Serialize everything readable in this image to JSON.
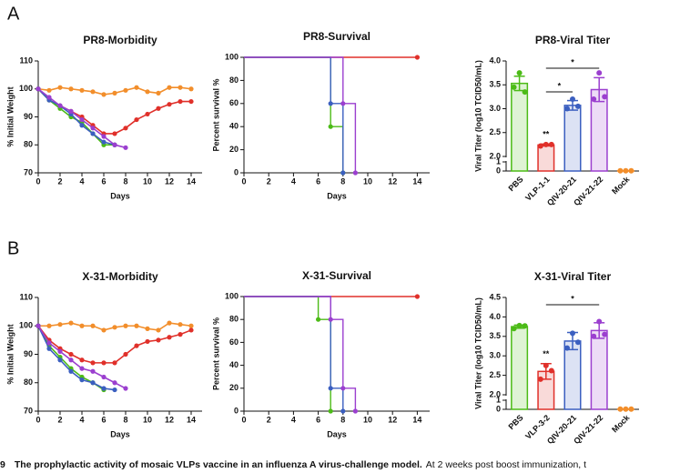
{
  "panel_labels": [
    "A",
    "B"
  ],
  "caption": {
    "number": "9",
    "title": "The prophylactic activity of mosaic VLPs vaccine in an influenza A virus-challenge model.",
    "text": "At 2 weeks post boost immunization, t"
  },
  "chart_data": [
    {
      "type": "line",
      "title": "PR8-Morbidity",
      "x_label": "Days",
      "y_label": "% Initial Weight",
      "x": [
        0,
        1,
        2,
        3,
        4,
        5,
        6,
        7,
        8,
        9,
        10,
        11,
        12,
        13,
        14
      ],
      "xlim": [
        0,
        15
      ],
      "xticks": [
        0,
        2,
        4,
        6,
        8,
        10,
        12,
        14
      ],
      "ylim": [
        70,
        110
      ],
      "yticks": [
        70,
        80,
        90,
        100,
        110
      ],
      "series": [
        {
          "color": "#f28e2b",
          "values": [
            100,
            99.5,
            100.5,
            100,
            99.5,
            99,
            98,
            98.5,
            99.5,
            100.5,
            99,
            98.5,
            100.5,
            100.5,
            100
          ]
        },
        {
          "color": "#e0302a",
          "values": [
            100,
            96,
            94,
            92,
            90,
            87,
            84,
            84,
            86,
            89,
            91,
            93,
            94.5,
            95.5,
            95.5
          ]
        },
        {
          "color": "#4cbb17",
          "values": [
            100,
            96,
            93,
            90,
            88,
            84,
            80,
            80,
            null,
            null,
            null,
            null,
            null,
            null,
            null
          ]
        },
        {
          "color": "#3b5fc0",
          "values": [
            100,
            96,
            94,
            91,
            87,
            84,
            81,
            80,
            null,
            null,
            null,
            null,
            null,
            null,
            null
          ]
        },
        {
          "color": "#9b3fcf",
          "values": [
            100,
            97,
            94,
            92,
            89,
            86,
            83,
            80,
            79,
            null,
            null,
            null,
            null,
            null,
            null
          ]
        }
      ]
    },
    {
      "type": "step",
      "title": "PR8-Survival",
      "x_label": "Days",
      "y_label": "Percent survival %",
      "xlim": [
        0,
        15
      ],
      "xticks": [
        0,
        2,
        4,
        6,
        8,
        10,
        12,
        14
      ],
      "ylim": [
        0,
        100
      ],
      "yticks": [
        0,
        20,
        40,
        60,
        80,
        100
      ],
      "series": [
        {
          "color": "#e0302a",
          "x": [
            0,
            14
          ],
          "values": [
            100,
            100
          ]
        },
        {
          "color": "#4cbb17",
          "x": [
            0,
            7,
            8
          ],
          "values": [
            100,
            40,
            0
          ]
        },
        {
          "color": "#3b5fc0",
          "x": [
            0,
            7,
            8
          ],
          "values": [
            100,
            60,
            0
          ]
        },
        {
          "color": "#9b3fcf",
          "x": [
            0,
            8,
            9
          ],
          "values": [
            100,
            60,
            0
          ]
        }
      ]
    },
    {
      "type": "bar",
      "title": "PR8-Viral Titer",
      "y_label": "Viral Titer (log10 TCID50/mL)",
      "categories": [
        "PBS",
        "VLP-1-1",
        "QIV-20-21",
        "QIV-21-22",
        "Mock"
      ],
      "colors": [
        "#4cbb17",
        "#e0302a",
        "#3b5fc0",
        "#9b3fcf",
        "#f28e2b"
      ],
      "values": [
        3.53,
        2.24,
        3.07,
        3.4,
        0.02
      ],
      "errors": [
        0.15,
        0.02,
        0.1,
        0.25,
        0
      ],
      "points": [
        [
          3.45,
          3.75,
          3.35
        ],
        [
          2.22,
          2.25,
          2.25
        ],
        [
          3.0,
          3.2,
          3.05
        ],
        [
          3.2,
          3.75,
          3.25
        ],
        [
          0.02,
          0.02,
          0.02
        ]
      ],
      "ylim": [
        0,
        4.0
      ],
      "axis_break": [
        1,
        2
      ],
      "yticks": [
        0,
        1,
        {
          "value": 2,
          "label": "2.0"
        },
        2.5,
        {
          "value": 3,
          "label": "3.0"
        },
        3.5,
        {
          "value": 4,
          "label": "4.0"
        }
      ],
      "significance": [
        {
          "label": "*",
          "from": 1,
          "to": 3
        },
        {
          "label": "*",
          "from": 1,
          "to": 2
        },
        {
          "label": "**",
          "from": 1,
          "to": 1
        }
      ]
    },
    {
      "type": "line",
      "title": "X-31-Morbidity",
      "x_label": "Days",
      "y_label": "% Initial Weight",
      "x": [
        0,
        1,
        2,
        3,
        4,
        5,
        6,
        7,
        8,
        9,
        10,
        11,
        12,
        13,
        14
      ],
      "xlim": [
        0,
        15
      ],
      "xticks": [
        0,
        2,
        4,
        6,
        8,
        10,
        12,
        14
      ],
      "ylim": [
        70,
        110
      ],
      "yticks": [
        70,
        80,
        90,
        100,
        110
      ],
      "series": [
        {
          "color": "#f28e2b",
          "values": [
            100,
            100,
            100.5,
            101,
            100,
            100,
            98.5,
            99.5,
            100,
            100,
            99,
            98.5,
            101,
            100.5,
            100
          ]
        },
        {
          "color": "#e0302a",
          "values": [
            100,
            95,
            92,
            90,
            88,
            87,
            87,
            87,
            90,
            93,
            94.5,
            95,
            96,
            97,
            98.5
          ]
        },
        {
          "color": "#4cbb17",
          "values": [
            100,
            93,
            89,
            85,
            82,
            80,
            77.5,
            null,
            null,
            null,
            null,
            null,
            null,
            null,
            null
          ]
        },
        {
          "color": "#3b5fc0",
          "values": [
            100,
            92,
            88,
            84,
            81,
            80,
            78,
            77.5,
            null,
            null,
            null,
            null,
            null,
            null,
            null
          ]
        },
        {
          "color": "#9b3fcf",
          "values": [
            100,
            94,
            91,
            88,
            85,
            84,
            82,
            80,
            78,
            null,
            null,
            null,
            null,
            null,
            null
          ]
        }
      ]
    },
    {
      "type": "step",
      "title": "X-31-Survival",
      "x_label": "Days",
      "y_label": "Percent survival %",
      "xlim": [
        0,
        15
      ],
      "xticks": [
        0,
        2,
        4,
        6,
        8,
        10,
        12,
        14
      ],
      "ylim": [
        0,
        100
      ],
      "yticks": [
        0,
        20,
        40,
        60,
        80,
        100
      ],
      "series": [
        {
          "color": "#e0302a",
          "x": [
            0,
            14
          ],
          "values": [
            100,
            100
          ]
        },
        {
          "color": "#4cbb17",
          "x": [
            0,
            6,
            7
          ],
          "values": [
            100,
            80,
            0
          ]
        },
        {
          "color": "#3b5fc0",
          "x": [
            0,
            7,
            8
          ],
          "values": [
            100,
            20,
            0
          ]
        },
        {
          "color": "#9b3fcf",
          "x": [
            0,
            7,
            8,
            9
          ],
          "values": [
            100,
            80,
            20,
            0
          ]
        }
      ]
    },
    {
      "type": "bar",
      "title": "X-31-Viral Titer",
      "y_label": "Viral Titer (log10 TCID50/mL)",
      "categories": [
        "PBS",
        "VLP-3-2",
        "QIV-20-21",
        "QIV-21-22",
        "Mock"
      ],
      "colors": [
        "#4cbb17",
        "#e0302a",
        "#3b5fc0",
        "#9b3fcf",
        "#f28e2b"
      ],
      "values": [
        3.75,
        2.6,
        3.38,
        3.65,
        0.02
      ],
      "errors": [
        0.04,
        0.2,
        0.22,
        0.2,
        0
      ],
      "points": [
        [
          3.7,
          3.78,
          3.77
        ],
        [
          2.4,
          2.75,
          2.62
        ],
        [
          3.2,
          3.58,
          3.35
        ],
        [
          3.5,
          3.88,
          3.55
        ],
        [
          0.02,
          0.02,
          0.02
        ]
      ],
      "ylim": [
        0,
        4.5
      ],
      "axis_break": [
        1,
        2
      ],
      "yticks": [
        0,
        1,
        {
          "value": 2,
          "label": "2.0"
        },
        2.5,
        {
          "value": 3,
          "label": "3.0"
        },
        3.5,
        {
          "value": 4,
          "label": "4.0"
        },
        4.5
      ],
      "significance": [
        {
          "label": "*",
          "from": 1,
          "to": 3
        },
        {
          "label": "**",
          "from": 1,
          "to": 1
        }
      ]
    }
  ]
}
